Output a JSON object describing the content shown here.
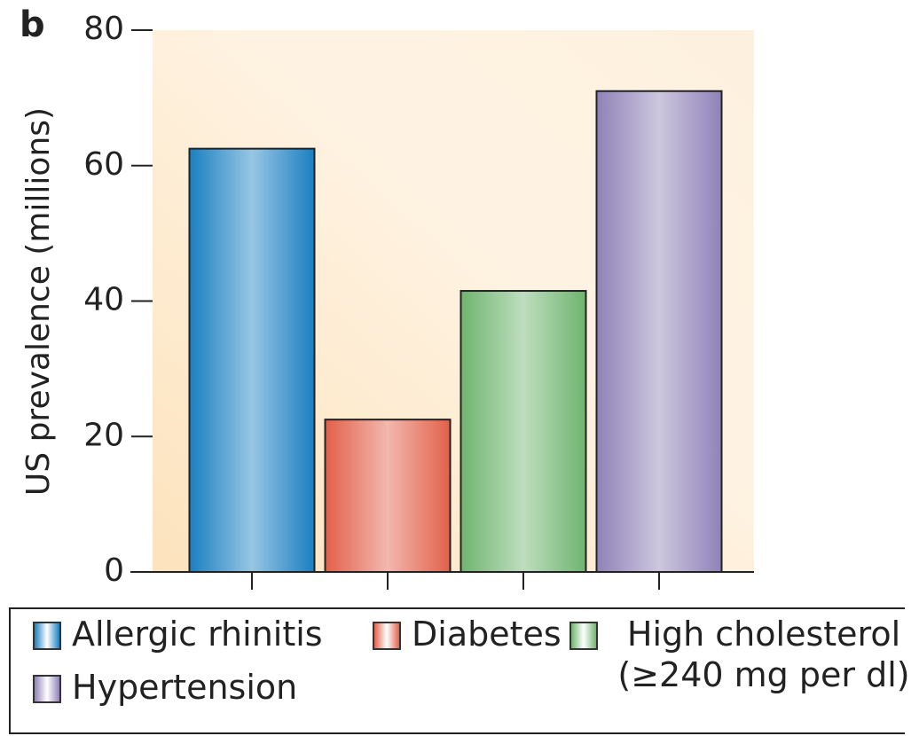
{
  "chart_data": {
    "type": "bar",
    "panel_label": "b",
    "y_label": "US prevalence (millions)",
    "categories": [
      "Allergic rhinitis",
      "Diabetes",
      "High cholesterol (≥240 mg per dl)",
      "Hypertension"
    ],
    "values": [
      62.5,
      22.5,
      41.5,
      71
    ],
    "colors": [
      "#1a7fc1",
      "#e2604a",
      "#6fb46f",
      "#8f82b8"
    ],
    "ylim": [
      0,
      80
    ],
    "yticks": [
      0,
      20,
      40,
      60,
      80
    ]
  }
}
